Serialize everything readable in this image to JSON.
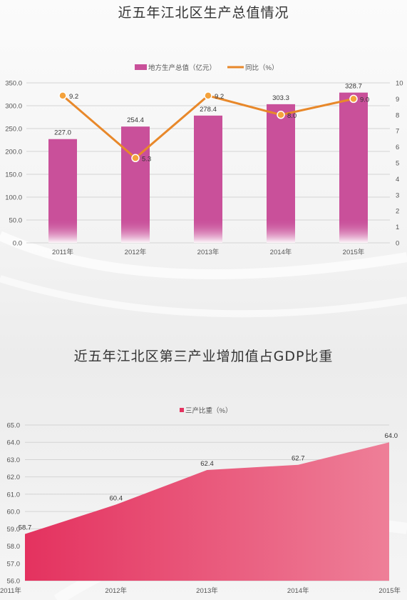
{
  "colors": {
    "bar": "#c9509a",
    "line": "#e8882a",
    "marker_fill": "#f4a23c",
    "area_start": "#e4325f",
    "area_end": "#ee7f98",
    "grid": "#d4d4d4",
    "axis_text": "#555555"
  },
  "chart_data": [
    {
      "type": "bar",
      "title": "近五年江北区生产总值情况",
      "categories": [
        "2011年",
        "2012年",
        "2013年",
        "2014年",
        "2015年"
      ],
      "series": [
        {
          "name": "地方生产总值（亿元）",
          "type": "bar",
          "axis": "left",
          "values": [
            227.0,
            254.4,
            278.4,
            303.3,
            328.7
          ],
          "labels": [
            "227.0",
            "254.4",
            "278.4",
            "303.3",
            "328.7"
          ]
        },
        {
          "name": "同比（%）",
          "type": "line",
          "axis": "right",
          "values": [
            9.2,
            5.3,
            9.2,
            8.0,
            9.0
          ],
          "labels": [
            "9.2",
            "5.3",
            "9.2",
            "8.0",
            "9.0"
          ]
        }
      ],
      "left_axis": {
        "ylim": [
          0,
          350
        ],
        "ticks": [
          "0.0",
          "50.0",
          "100.0",
          "150.0",
          "200.0",
          "250.0",
          "300.0",
          "350.0"
        ]
      },
      "right_axis": {
        "ylim": [
          0,
          10
        ],
        "ticks": [
          "0",
          "1",
          "2",
          "3",
          "4",
          "5",
          "6",
          "7",
          "8",
          "9",
          "10"
        ]
      },
      "legend_position": "top",
      "grid": true
    },
    {
      "type": "area",
      "title": "近五年江北区第三产业增加值占GDP比重",
      "categories": [
        "2011年",
        "2012年",
        "2013年",
        "2014年",
        "2015年"
      ],
      "series": [
        {
          "name": "三产比重（%）",
          "values": [
            58.7,
            60.4,
            62.4,
            62.7,
            64.0
          ],
          "labels": [
            "58.7",
            "60.4",
            "62.4",
            "62.7",
            "64.0"
          ]
        }
      ],
      "y_axis": {
        "ylim": [
          56,
          65
        ],
        "ticks": [
          "56.0",
          "57.0",
          "58.0",
          "59.0",
          "60.0",
          "61.0",
          "62.0",
          "63.0",
          "64.0",
          "65.0"
        ]
      },
      "legend_position": "top",
      "grid": true
    }
  ]
}
